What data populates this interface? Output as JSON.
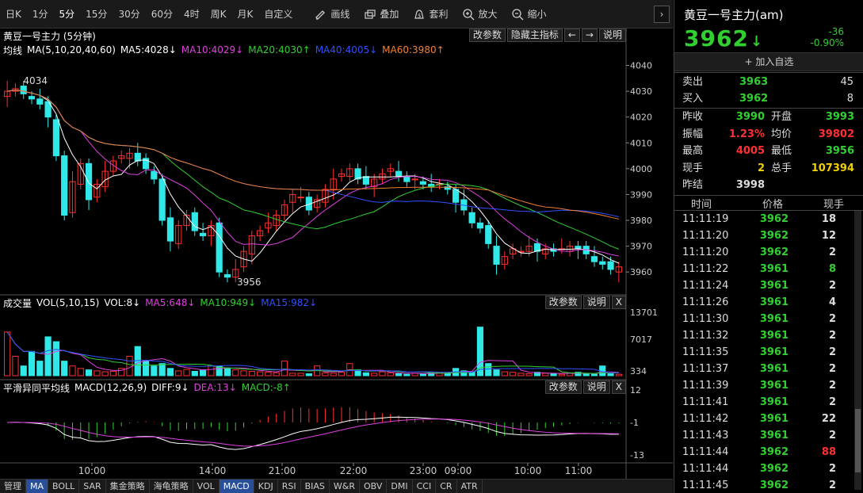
{
  "toolbar": {
    "periods": [
      "日K",
      "1分",
      "5分",
      "15分",
      "30分",
      "60分",
      "4时",
      "周K",
      "月K",
      "自定义"
    ],
    "active": "5分",
    "tools": [
      {
        "label": "画线",
        "icon": "pencil-icon"
      },
      {
        "label": "叠加",
        "icon": "overlay-icon"
      },
      {
        "label": "套利",
        "icon": "bag-icon"
      },
      {
        "label": "放大",
        "icon": "zoom-in-icon"
      },
      {
        "label": "缩小",
        "icon": "zoom-out-icon"
      }
    ]
  },
  "main": {
    "title": "黄豆一号主力 (5分钟)",
    "buttons": [
      "改参数",
      "隐藏主指标",
      "←",
      "→",
      "说明"
    ],
    "legend": [
      {
        "t": "均线",
        "c": "#ffffff"
      },
      {
        "t": "MA(5,10,20,40,60)",
        "c": "#ffffff"
      },
      {
        "t": "MA5:4028↓",
        "c": "#ffffff"
      },
      {
        "t": "MA10:4029↓",
        "c": "#e040e0"
      },
      {
        "t": "MA20:4030↑",
        "c": "#30d030"
      },
      {
        "t": "MA40:4005↓",
        "c": "#3050ff"
      },
      {
        "t": "MA60:3980↑",
        "c": "#f08030"
      }
    ],
    "yticks": [
      "4040",
      "4030",
      "4020",
      "4010",
      "4000",
      "3990",
      "3980",
      "3970",
      "3960"
    ],
    "high_label": "4034",
    "low_label": "3956"
  },
  "vol": {
    "legend": [
      {
        "t": "成交量",
        "c": "#ffffff"
      },
      {
        "t": "VOL(5,10,15)",
        "c": "#ffffff"
      },
      {
        "t": "VOL:8↓",
        "c": "#ffffff"
      },
      {
        "t": "MA5:648↓",
        "c": "#e040e0"
      },
      {
        "t": "MA10:949↓",
        "c": "#30d030"
      },
      {
        "t": "MA15:982↓",
        "c": "#3050ff"
      }
    ],
    "buttons": [
      "改参数",
      "说明",
      "X"
    ],
    "yticks": [
      "13701",
      "7017",
      "334"
    ]
  },
  "macd": {
    "legend": [
      {
        "t": "平滑异同平均线",
        "c": "#ffffff"
      },
      {
        "t": "MACD(12,26,9)",
        "c": "#ffffff"
      },
      {
        "t": "DIFF:9↓",
        "c": "#ffffff"
      },
      {
        "t": "DEA:13↓",
        "c": "#e040e0"
      },
      {
        "t": "MACD:-8↑",
        "c": "#30d030"
      }
    ],
    "buttons": [
      "改参数",
      "说明",
      "X"
    ],
    "yticks": [
      "12",
      "-1",
      "-13"
    ]
  },
  "xaxis": [
    "10:00",
    "14:00",
    "21:00",
    "22:00",
    "23:00",
    "09:00",
    "10:00",
    "11:00"
  ],
  "indicators": [
    "管理",
    "MA",
    "BOLL",
    "SAR",
    "集金策略",
    "海龟策略",
    "VOL",
    "MACD",
    "KDJ",
    "RSI",
    "BIAS",
    "W&R",
    "OBV",
    "DMI",
    "CCI",
    "CR",
    "ATR"
  ],
  "indicator_selected": [
    "MA",
    "MACD"
  ],
  "quote": {
    "name": "黄豆一号主力(am)",
    "price": "3962",
    "arrow": "↓",
    "change": "-36",
    "pct": "-0.90%",
    "add": "+ 加入自选",
    "sell": {
      "label": "卖出",
      "price": "3963",
      "qty": "45"
    },
    "buy": {
      "label": "买入",
      "price": "3962",
      "qty": "8"
    },
    "stats": [
      [
        {
          "k": "昨收",
          "v": "3990",
          "c": "g"
        },
        {
          "k": "开盘",
          "v": "3993",
          "c": "g"
        }
      ],
      [
        {
          "k": "振幅",
          "v": "1.23%",
          "c": "r"
        },
        {
          "k": "均价",
          "v": "39802",
          "c": "r"
        }
      ],
      [
        {
          "k": "最高",
          "v": "4005",
          "c": "r"
        },
        {
          "k": "最低",
          "v": "3956",
          "c": "g"
        }
      ],
      [
        {
          "k": "现手",
          "v": "2",
          "c": "y"
        },
        {
          "k": "总手",
          "v": "107394",
          "c": "y"
        }
      ],
      [
        {
          "k": "昨结",
          "v": "3998",
          "c": "w"
        }
      ]
    ]
  },
  "ticks": {
    "headers": [
      "时间",
      "价格",
      "现手"
    ],
    "rows": [
      {
        "t": "11:11:19",
        "p": "3962",
        "q": "18",
        "qc": "w"
      },
      {
        "t": "11:11:20",
        "p": "3962",
        "q": "12",
        "qc": "w"
      },
      {
        "t": "11:11:20",
        "p": "3962",
        "q": "2",
        "qc": "w"
      },
      {
        "t": "11:11:22",
        "p": "3961",
        "q": "8",
        "qc": "g"
      },
      {
        "t": "11:11:24",
        "p": "3961",
        "q": "2",
        "qc": "w"
      },
      {
        "t": "11:11:26",
        "p": "3961",
        "q": "4",
        "qc": "w"
      },
      {
        "t": "11:11:30",
        "p": "3961",
        "q": "2",
        "qc": "w"
      },
      {
        "t": "11:11:32",
        "p": "3961",
        "q": "2",
        "qc": "w"
      },
      {
        "t": "11:11:35",
        "p": "3961",
        "q": "2",
        "qc": "w"
      },
      {
        "t": "11:11:37",
        "p": "3961",
        "q": "2",
        "qc": "w"
      },
      {
        "t": "11:11:39",
        "p": "3961",
        "q": "2",
        "qc": "w"
      },
      {
        "t": "11:11:41",
        "p": "3961",
        "q": "2",
        "qc": "w"
      },
      {
        "t": "11:11:42",
        "p": "3961",
        "q": "22",
        "qc": "w"
      },
      {
        "t": "11:11:43",
        "p": "3961",
        "q": "2",
        "qc": "w"
      },
      {
        "t": "11:11:44",
        "p": "3962",
        "q": "88",
        "qc": "r"
      },
      {
        "t": "11:11:44",
        "p": "3962",
        "q": "2",
        "qc": "w"
      },
      {
        "t": "11:11:45",
        "p": "3962",
        "q": "2",
        "qc": "w"
      }
    ]
  },
  "chart_data": {
    "type": "candlestick",
    "ylim": [
      3953,
      4042
    ],
    "close": [
      4030,
      4031,
      4029,
      4027,
      4025,
      4020,
      4005,
      3982,
      3995,
      4002,
      3988,
      3994,
      3999,
      4003,
      4005,
      4006,
      4003,
      4000,
      3996,
      3980,
      3972,
      3978,
      3982,
      3976,
      3974,
      3978,
      3960,
      3958,
      3961,
      3968,
      3974,
      3976,
      3979,
      3982,
      3986,
      3990,
      3989,
      3984,
      3988,
      3992,
      3996,
      3998,
      4000,
      3996,
      3994,
      3996,
      3998,
      4000,
      3997,
      3995,
      3996,
      3994,
      3993,
      3994,
      3992,
      3987,
      3984,
      3979,
      3977,
      3971,
      3963,
      3966,
      3969,
      3968,
      3970,
      3968,
      3969,
      3968,
      3969,
      3970,
      3969,
      3967,
      3964,
      3963,
      3961,
      3962
    ],
    "vol": [
      9000,
      4000,
      2000,
      5000,
      3000,
      8000,
      7000,
      3000,
      2000,
      1500,
      1200,
      1000,
      800,
      900,
      1500,
      4000,
      6000,
      3000,
      2000,
      2500,
      1500,
      1000,
      1300,
      900,
      1200,
      2000,
      2000,
      1600,
      1200,
      1000,
      900,
      800,
      700,
      600,
      3000,
      500,
      500,
      400,
      2000,
      600,
      500,
      700,
      2500,
      1200,
      600,
      500,
      800,
      600,
      400,
      300,
      500,
      400,
      600,
      700,
      500,
      1500,
      1000,
      800,
      10000,
      2500,
      1200,
      800,
      700,
      500,
      400,
      700,
      500,
      400,
      300,
      500,
      700,
      400,
      300,
      2000,
      400,
      300
    ]
  }
}
